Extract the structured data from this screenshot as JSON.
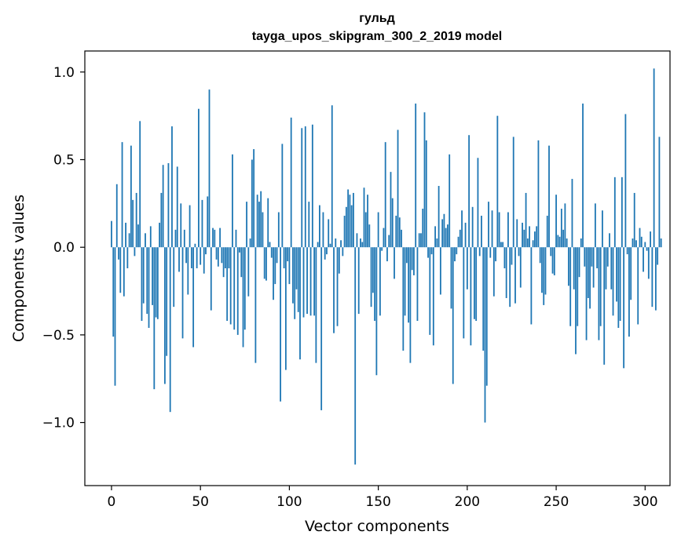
{
  "chart_data": {
    "type": "bar",
    "title_line1": "гульд",
    "title_line2": "tayga_upos_skipgram_300_2_2019 model",
    "xlabel": "Vector components",
    "ylabel": "Components values",
    "xlim": [
      -15,
      314
    ],
    "ylim": [
      -1.36,
      1.12
    ],
    "xticks": [
      0,
      50,
      100,
      150,
      200,
      250,
      300
    ],
    "xtick_labels": [
      "0",
      "50",
      "100",
      "150",
      "200",
      "250",
      "300"
    ],
    "yticks": [
      1.0,
      0.5,
      0.0,
      -0.5,
      -1.0
    ],
    "ytick_labels": [
      "1.0",
      "0.5",
      "0.0",
      "−0.5",
      "−1.0"
    ],
    "bar_color": "#1f77b4",
    "values": [
      0.15,
      -0.51,
      -0.79,
      0.36,
      -0.07,
      -0.26,
      0.6,
      -0.28,
      0.14,
      -0.12,
      0.08,
      0.58,
      0.27,
      -0.05,
      0.31,
      0.13,
      0.72,
      -0.42,
      -0.32,
      0.08,
      -0.38,
      -0.46,
      0.12,
      -0.33,
      -0.81,
      -0.4,
      -0.41,
      0.14,
      0.31,
      0.47,
      -0.78,
      -0.62,
      0.48,
      -0.94,
      0.69,
      -0.34,
      0.1,
      0.46,
      -0.14,
      0.25,
      -0.52,
      0.1,
      -0.09,
      -0.27,
      0.24,
      -0.12,
      -0.57,
      0.02,
      -0.12,
      0.79,
      -0.1,
      0.27,
      -0.15,
      -0.04,
      0.29,
      0.9,
      -0.36,
      0.11,
      0.1,
      -0.07,
      -0.11,
      0.11,
      -0.09,
      -0.17,
      -0.12,
      -0.42,
      -0.12,
      -0.44,
      0.53,
      -0.47,
      0.1,
      -0.5,
      -0.03,
      -0.17,
      -0.57,
      -0.47,
      0.26,
      -0.28,
      0.05,
      0.5,
      0.56,
      -0.66,
      0.3,
      0.26,
      0.32,
      0.2,
      -0.18,
      -0.19,
      0.28,
      0.03,
      -0.06,
      -0.3,
      -0.21,
      -0.09,
      0.2,
      -0.88,
      0.59,
      -0.12,
      -0.7,
      -0.08,
      -0.21,
      0.74,
      -0.32,
      -0.41,
      -0.24,
      -0.37,
      -0.64,
      0.68,
      -0.4,
      0.69,
      -0.38,
      0.26,
      -0.39,
      0.7,
      -0.39,
      -0.66,
      0.03,
      0.24,
      -0.93,
      0.2,
      -0.07,
      -0.04,
      0.16,
      0.02,
      0.81,
      -0.49,
      0.05,
      -0.45,
      -0.15,
      0.04,
      -0.05,
      0.18,
      0.23,
      0.33,
      0.3,
      0.24,
      0.31,
      -1.24,
      0.08,
      -0.38,
      0.05,
      0.03,
      0.34,
      0.2,
      0.3,
      0.13,
      -0.34,
      -0.26,
      -0.42,
      -0.73,
      0.2,
      -0.39,
      -0.02,
      0.11,
      0.6,
      -0.08,
      0.07,
      0.43,
      0.28,
      -0.18,
      0.18,
      0.67,
      0.17,
      0.1,
      -0.59,
      -0.39,
      -0.09,
      -0.43,
      -0.66,
      -0.13,
      -0.16,
      0.82,
      -0.42,
      0.08,
      0.08,
      0.22,
      0.77,
      0.61,
      -0.06,
      -0.5,
      -0.04,
      -0.56,
      0.12,
      0.05,
      0.35,
      -0.27,
      0.16,
      0.19,
      0.11,
      0.13,
      0.53,
      -0.35,
      -0.78,
      -0.08,
      -0.04,
      0.06,
      0.1,
      0.21,
      -0.52,
      0.14,
      -0.24,
      0.64,
      -0.56,
      0.23,
      -0.41,
      -0.42,
      0.51,
      -0.05,
      0.18,
      -0.59,
      -1.0,
      -0.79,
      0.26,
      -0.06,
      0.21,
      -0.28,
      -0.08,
      0.75,
      0.2,
      0.03,
      0.03,
      -0.12,
      -0.29,
      0.2,
      -0.34,
      -0.1,
      0.63,
      -0.32,
      0.16,
      -0.05,
      -0.23,
      0.14,
      0.1,
      0.31,
      0.05,
      0.12,
      -0.44,
      0.04,
      0.09,
      0.12,
      0.61,
      -0.09,
      -0.26,
      -0.33,
      -0.27,
      0.18,
      0.58,
      -0.05,
      -0.15,
      -0.16,
      0.3,
      0.07,
      0.06,
      0.22,
      0.1,
      0.25,
      0.05,
      -0.22,
      -0.45,
      0.39,
      -0.24,
      -0.61,
      -0.45,
      -0.17,
      0.05,
      0.82,
      -0.11,
      -0.53,
      -0.29,
      -0.35,
      -0.11,
      -0.23,
      0.25,
      -0.12,
      -0.53,
      -0.45,
      0.21,
      -0.67,
      -0.24,
      -0.11,
      0.08,
      -0.24,
      -0.39,
      0.4,
      -0.31,
      -0.46,
      -0.42,
      0.4,
      -0.69,
      0.76,
      -0.04,
      -0.51,
      -0.3,
      0.05,
      0.31,
      0.04,
      -0.44,
      0.11,
      0.06,
      -0.14,
      0.03,
      -0.02,
      -0.18,
      0.09,
      -0.34,
      1.02,
      -0.36,
      -0.1,
      0.63,
      0.05
    ]
  }
}
